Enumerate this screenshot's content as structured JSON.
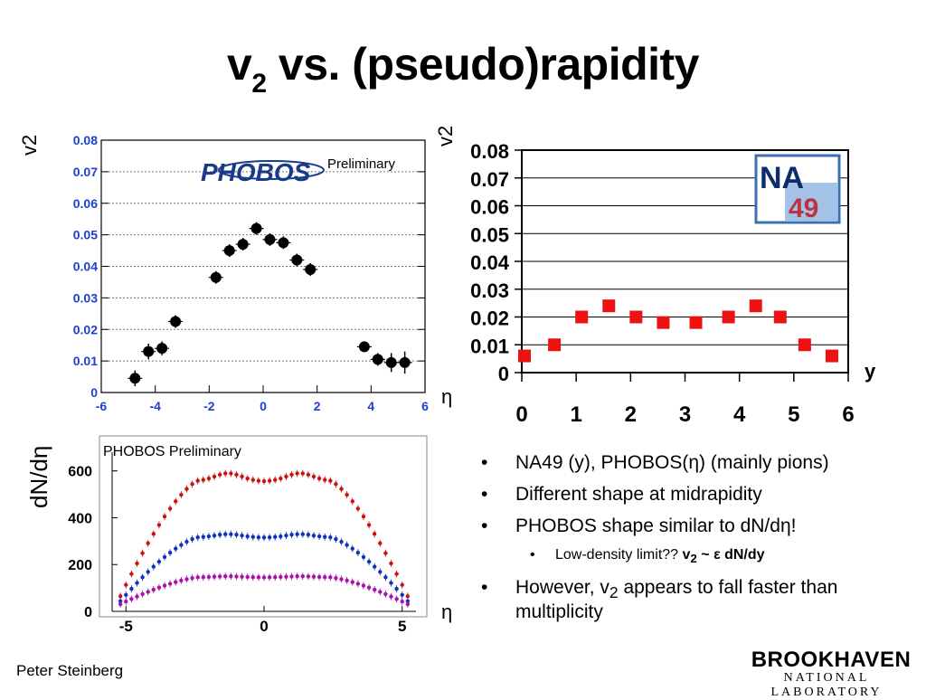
{
  "slide": {
    "title_main": "v",
    "title_sub": "2",
    "title_rest": " vs. (pseudo)rapidity",
    "footer": "Peter Steinberg",
    "bnl_name": "BROOKHAVEN",
    "bnl_sub": "NATIONAL LABORATORY"
  },
  "bullets": [
    {
      "dot": "•",
      "text": "NA49 (y),  PHOBOS(η) (mainly pions)"
    },
    {
      "dot": "•",
      "text": "Different shape at midrapidity"
    },
    {
      "dot": "•",
      "text": "PHOBOS shape similar to dN/dη!"
    },
    {
      "dot": "•",
      "text": "Low-density limit??  ",
      "bold_v": "v",
      "bold_sub": "2",
      "bold_rest": " ~ ε dN/dy"
    },
    {
      "dot": "•",
      "text": "However, v",
      "sub": "2",
      "text2": " appears to fall faster than multiplicity"
    }
  ],
  "chart_data": [
    {
      "type": "scatter",
      "name": "phobos-v2",
      "ylabel": "v2",
      "xlabel": "η",
      "annotation": "Preliminary",
      "logo_text": "PHOBOS",
      "xlim": [
        -6,
        6
      ],
      "ylim": [
        0,
        0.08
      ],
      "xticks": [
        "-6",
        "-4",
        "-2",
        "0",
        "2",
        "4",
        "6"
      ],
      "yticks": [
        "0",
        "0.01",
        "0.02",
        "0.03",
        "0.04",
        "0.05",
        "0.06",
        "0.07",
        "0.08"
      ],
      "points": [
        {
          "x": -4.75,
          "y": 0.0045,
          "err": 0.0025
        },
        {
          "x": -4.25,
          "y": 0.013,
          "err": 0.0025
        },
        {
          "x": -3.75,
          "y": 0.014,
          "err": 0.0022
        },
        {
          "x": -3.25,
          "y": 0.0225,
          "err": 0.002
        },
        {
          "x": -1.75,
          "y": 0.0365,
          "err": 0.002
        },
        {
          "x": -1.25,
          "y": 0.045,
          "err": 0.002
        },
        {
          "x": -0.75,
          "y": 0.047,
          "err": 0.002
        },
        {
          "x": -0.25,
          "y": 0.052,
          "err": 0.002
        },
        {
          "x": 0.25,
          "y": 0.0485,
          "err": 0.002
        },
        {
          "x": 0.75,
          "y": 0.0475,
          "err": 0.002
        },
        {
          "x": 1.25,
          "y": 0.042,
          "err": 0.002
        },
        {
          "x": 1.75,
          "y": 0.039,
          "err": 0.002
        },
        {
          "x": 3.75,
          "y": 0.0145,
          "err": 0.001
        },
        {
          "x": 4.25,
          "y": 0.0105,
          "err": 0.002
        },
        {
          "x": 4.75,
          "y": 0.0095,
          "err": 0.003
        },
        {
          "x": 5.25,
          "y": 0.0095,
          "err": 0.0035
        }
      ]
    },
    {
      "type": "scatter",
      "name": "na49-v2",
      "ylabel": "v2",
      "xlabel": "y",
      "logo_text_1": "NA",
      "logo_text_2": "49",
      "xlim": [
        0,
        6
      ],
      "ylim": [
        0,
        0.08
      ],
      "xticks": [
        "0",
        "1",
        "2",
        "3",
        "4",
        "5",
        "6"
      ],
      "yticks": [
        "0",
        "0.01",
        "0.02",
        "0.03",
        "0.04",
        "0.05",
        "0.06",
        "0.07",
        "0.08"
      ],
      "color": "#ee1111",
      "points": [
        {
          "x": 0.05,
          "y": 0.006
        },
        {
          "x": 0.6,
          "y": 0.01
        },
        {
          "x": 1.1,
          "y": 0.02
        },
        {
          "x": 1.6,
          "y": 0.024
        },
        {
          "x": 2.1,
          "y": 0.02
        },
        {
          "x": 2.6,
          "y": 0.018
        },
        {
          "x": 3.2,
          "y": 0.018
        },
        {
          "x": 3.8,
          "y": 0.02
        },
        {
          "x": 4.3,
          "y": 0.024
        },
        {
          "x": 4.75,
          "y": 0.02
        },
        {
          "x": 5.2,
          "y": 0.01
        },
        {
          "x": 5.7,
          "y": 0.006
        }
      ]
    },
    {
      "type": "scatter",
      "name": "phobos-dndeta",
      "ylabel": "dN/dη",
      "xlabel": "η",
      "annotation": "PHOBOS Preliminary",
      "xlim": [
        -5.5,
        5.5
      ],
      "ylim": [
        0,
        680
      ],
      "xticks": [
        "-5",
        "0",
        "5"
      ],
      "yticks": [
        "0",
        "200",
        "400",
        "600"
      ],
      "series": [
        {
          "color": "#cc1111",
          "peak": 590,
          "mid": 555,
          "edge": 40
        },
        {
          "color": "#1133bb",
          "peak": 330,
          "mid": 315,
          "edge": 30
        },
        {
          "color": "#aa11aa",
          "peak": 150,
          "mid": 145,
          "edge": 25
        }
      ]
    }
  ]
}
